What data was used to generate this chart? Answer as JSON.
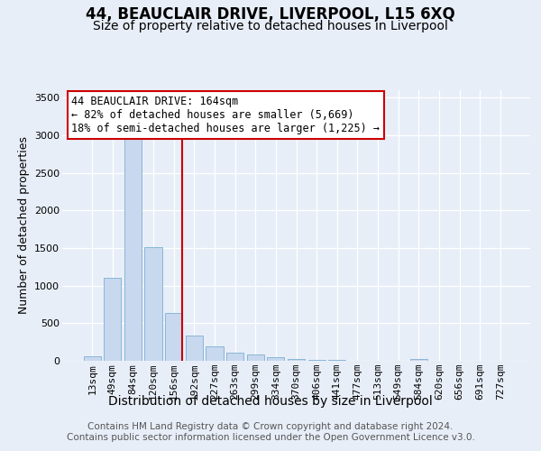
{
  "title": "44, BEAUCLAIR DRIVE, LIVERPOOL, L15 6XQ",
  "subtitle": "Size of property relative to detached houses in Liverpool",
  "xlabel": "Distribution of detached houses by size in Liverpool",
  "ylabel": "Number of detached properties",
  "categories": [
    "13sqm",
    "49sqm",
    "84sqm",
    "120sqm",
    "156sqm",
    "192sqm",
    "227sqm",
    "263sqm",
    "299sqm",
    "334sqm",
    "370sqm",
    "406sqm",
    "441sqm",
    "477sqm",
    "513sqm",
    "549sqm",
    "584sqm",
    "620sqm",
    "656sqm",
    "691sqm",
    "727sqm"
  ],
  "values": [
    55,
    1100,
    3000,
    1510,
    640,
    340,
    195,
    110,
    80,
    50,
    28,
    12,
    8,
    5,
    3,
    2,
    20,
    2,
    1,
    1,
    1
  ],
  "bar_color": "#c8d8ee",
  "bar_edge_color": "#7bafd4",
  "vline_color": "#cc0000",
  "vline_bar_index": 4,
  "annotation_text": "44 BEAUCLAIR DRIVE: 164sqm\n← 82% of detached houses are smaller (5,669)\n18% of semi-detached houses are larger (1,225) →",
  "annotation_box_facecolor": "#ffffff",
  "annotation_box_edgecolor": "#cc0000",
  "footer_text": "Contains HM Land Registry data © Crown copyright and database right 2024.\nContains public sector information licensed under the Open Government Licence v3.0.",
  "ylim": [
    0,
    3600
  ],
  "yticks": [
    0,
    500,
    1000,
    1500,
    2000,
    2500,
    3000,
    3500
  ],
  "background_color": "#e8eef8",
  "grid_color": "#ffffff",
  "title_fontsize": 12,
  "subtitle_fontsize": 10,
  "ylabel_fontsize": 9,
  "xlabel_fontsize": 10,
  "tick_fontsize": 8,
  "footer_fontsize": 7.5,
  "annotation_fontsize": 8.5
}
